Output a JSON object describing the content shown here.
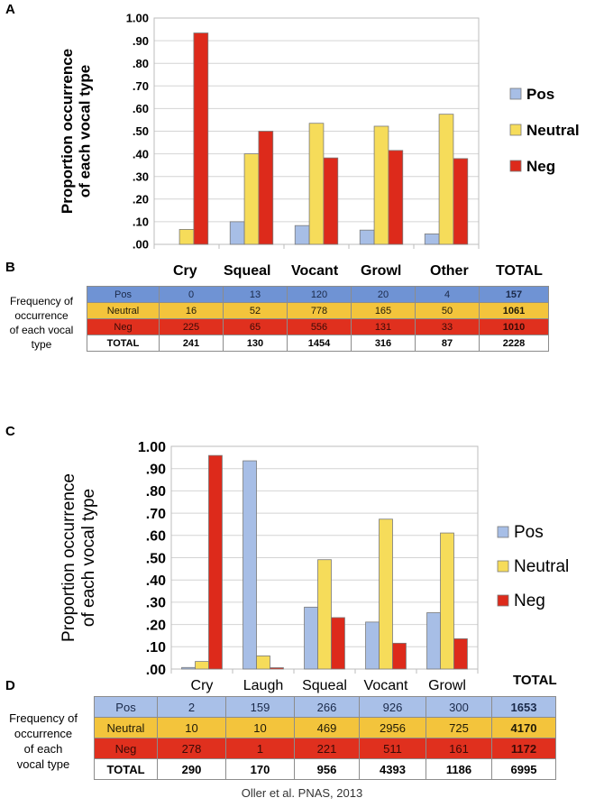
{
  "panels": {
    "a": "A",
    "b": "B",
    "c": "C",
    "d": "D"
  },
  "colors": {
    "pos": "#a7bee6",
    "neutral": "#f6dc5a",
    "neg": "#dd2a1b",
    "pos_b": "#6f93d4",
    "neutral_b": "#f3c43c",
    "neg_b": "#e0301e"
  },
  "chart_data": [
    {
      "type": "bar",
      "title": "",
      "ylabel_line1": "Proportion occurrence",
      "ylabel_line2": "of each vocal type",
      "xlabel": "",
      "categories": [
        "Cry",
        "Squeal",
        "Vocant",
        "Growl",
        "Other"
      ],
      "series": [
        {
          "name": "Pos",
          "values": [
            0.0,
            0.1,
            0.083,
            0.063,
            0.046
          ]
        },
        {
          "name": "Neutral",
          "values": [
            0.066,
            0.4,
            0.535,
            0.522,
            0.575
          ]
        },
        {
          "name": "Neg",
          "values": [
            0.934,
            0.5,
            0.382,
            0.415,
            0.379
          ]
        }
      ],
      "ylim": [
        0,
        1
      ],
      "yticks": [
        ".00",
        ".10",
        ".20",
        ".30",
        ".40",
        ".50",
        ".60",
        ".70",
        ".80",
        ".90",
        "1.00"
      ],
      "legend": [
        "Pos",
        "Neutral",
        "Neg"
      ],
      "legend_position": "right",
      "grid": true
    },
    {
      "type": "bar",
      "title": "",
      "ylabel_line1": "Proportion occurrence",
      "ylabel_line2": "of each vocal type",
      "xlabel": "",
      "categories": [
        "Cry",
        "Laugh",
        "Squeal",
        "Vocant",
        "Growl"
      ],
      "series": [
        {
          "name": "Pos",
          "values": [
            0.007,
            0.935,
            0.278,
            0.211,
            0.253
          ]
        },
        {
          "name": "Neutral",
          "values": [
            0.034,
            0.059,
            0.491,
            0.673,
            0.611
          ]
        },
        {
          "name": "Neg",
          "values": [
            0.959,
            0.006,
            0.231,
            0.116,
            0.136
          ]
        }
      ],
      "ylim": [
        0,
        1
      ],
      "yticks": [
        ".00",
        ".10",
        ".20",
        ".30",
        ".40",
        ".50",
        ".60",
        ".70",
        ".80",
        ".90",
        "1.00"
      ],
      "legend": [
        "Pos",
        "Neutral",
        "Neg"
      ],
      "legend_position": "right",
      "grid": true
    }
  ],
  "table_b": {
    "freq_label": [
      "Frequency of",
      "occurrence",
      "of each vocal",
      "type"
    ],
    "headers": [
      "Cry",
      "Squeal",
      "Vocant",
      "Growl",
      "Other",
      "TOTAL"
    ],
    "rows": [
      {
        "label": "Pos",
        "values": [
          "0",
          "13",
          "120",
          "20",
          "4",
          "157"
        ]
      },
      {
        "label": "Neutral",
        "values": [
          "16",
          "52",
          "778",
          "165",
          "50",
          "1061"
        ]
      },
      {
        "label": "Neg",
        "values": [
          "225",
          "65",
          "556",
          "131",
          "33",
          "1010"
        ]
      },
      {
        "label": "TOTAL",
        "values": [
          "241",
          "130",
          "1454",
          "316",
          "87",
          "2228"
        ]
      }
    ]
  },
  "table_d": {
    "freq_label": [
      "Frequency of",
      "occurrence",
      "of each",
      "vocal type"
    ],
    "total_header": "TOTAL",
    "rows": [
      {
        "label": "Pos",
        "values": [
          "2",
          "159",
          "266",
          "926",
          "300",
          "1653"
        ]
      },
      {
        "label": "Neutral",
        "values": [
          "10",
          "10",
          "469",
          "2956",
          "725",
          "4170"
        ]
      },
      {
        "label": "Neg",
        "values": [
          "278",
          "1",
          "221",
          "511",
          "161",
          "1172"
        ]
      },
      {
        "label": "TOTAL",
        "values": [
          "290",
          "170",
          "956",
          "4393",
          "1186",
          "6995"
        ]
      }
    ]
  },
  "credit": "Oller et al. PNAS, 2013"
}
